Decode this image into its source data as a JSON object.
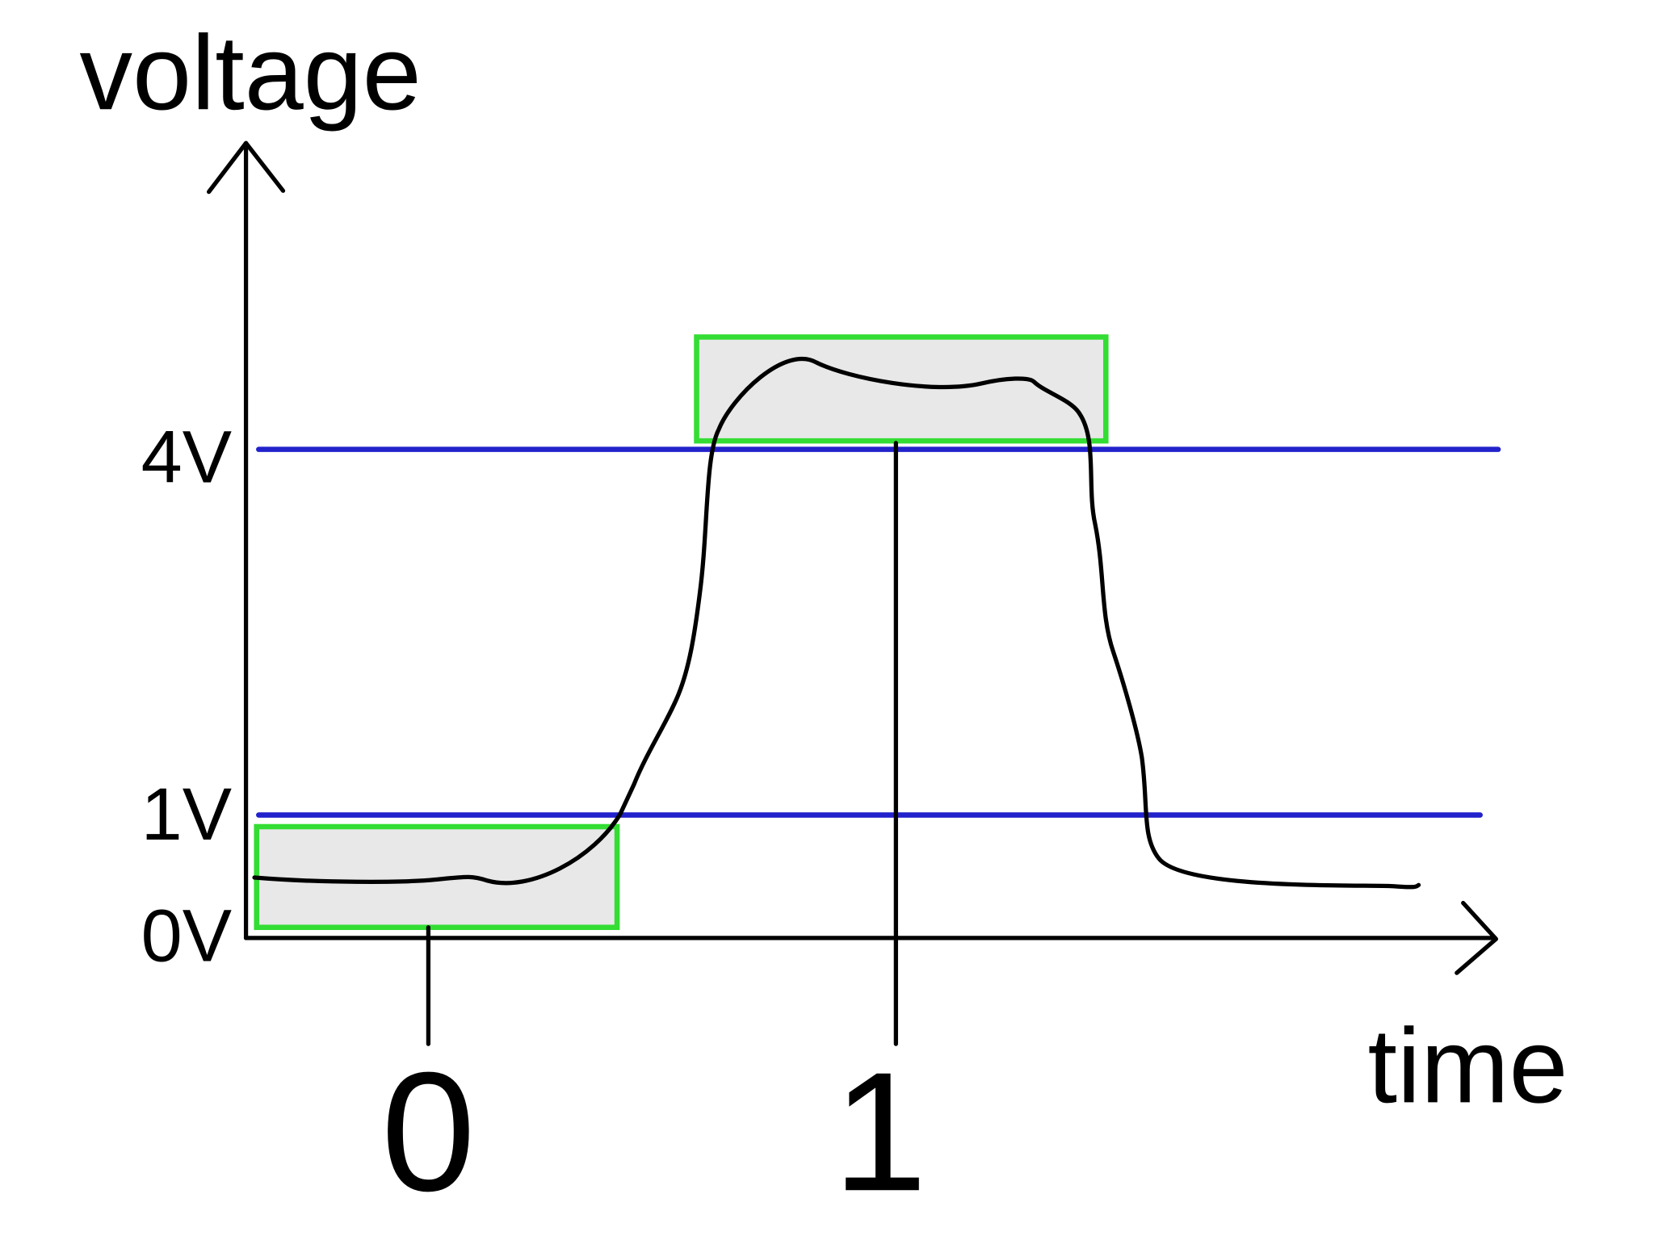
{
  "axes": {
    "y_label": "voltage",
    "x_label": "time"
  },
  "levels": [
    {
      "label": "4V"
    },
    {
      "label": "1V"
    },
    {
      "label": "0V"
    }
  ],
  "bits": [
    {
      "label": "0"
    },
    {
      "label": "1"
    }
  ]
}
